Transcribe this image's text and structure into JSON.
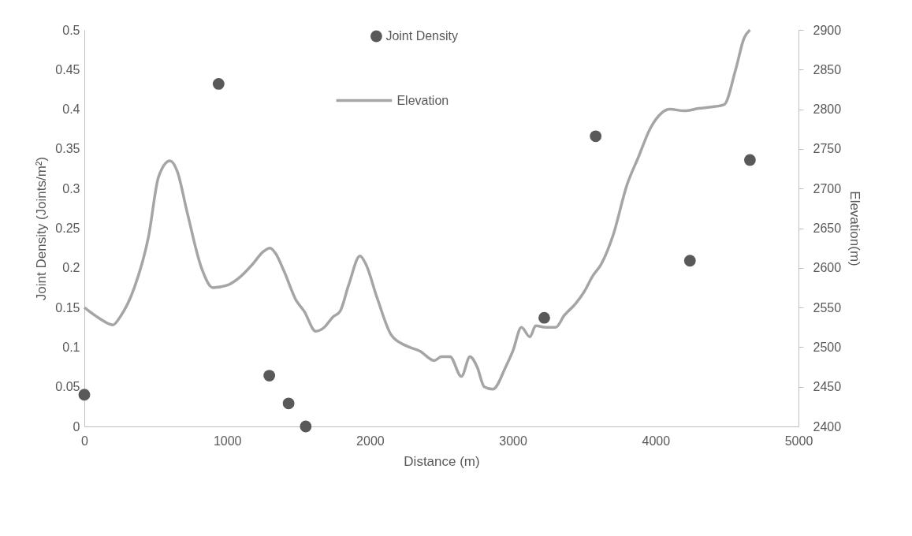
{
  "chart_data": {
    "type": "scatter",
    "xlabel": "Distance (m)",
    "ylabel": "Joint Density (Joints/m²)",
    "y2label": "Elevation(m)",
    "xlim": [
      0,
      5000
    ],
    "xticks": [
      0,
      1000,
      2000,
      3000,
      4000,
      5000
    ],
    "ylim": [
      0,
      0.5
    ],
    "yticks": [
      0,
      0.05,
      0.1,
      0.15,
      0.2,
      0.25,
      0.3,
      0.35,
      0.4,
      0.45,
      0.5
    ],
    "y2lim": [
      2400,
      2900
    ],
    "y2ticks": [
      2400,
      2450,
      2500,
      2550,
      2600,
      2650,
      2700,
      2750,
      2800,
      2850,
      2900
    ],
    "grid": false,
    "legend": "top",
    "series": [
      {
        "name": "Joint Density",
        "marker": "circle",
        "color": "#595959",
        "x": [
          0,
          940,
          1295,
          1430,
          1550,
          3220,
          3580,
          4240,
          4660
        ],
        "values": [
          0.04,
          0.432,
          0.064,
          0.029,
          0,
          0.137,
          0.366,
          0.209,
          0.336
        ]
      },
      {
        "name": "Elevation",
        "type": "line",
        "axis": "y2",
        "color": "#a5a5a5",
        "x": [
          0,
          100,
          200,
          250,
          350,
          450,
          520,
          600,
          650,
          720,
          820,
          900,
          1000,
          1100,
          1180,
          1250,
          1300,
          1340,
          1400,
          1480,
          1540,
          1620,
          1680,
          1740,
          1790,
          1850,
          1930,
          1970,
          2050,
          2150,
          2250,
          2350,
          2450,
          2500,
          2560,
          2640,
          2700,
          2750,
          2800,
          2860,
          2950,
          3000,
          3060,
          3120,
          3160,
          3230,
          3300,
          3360,
          3440,
          3500,
          3560,
          3620,
          3700,
          3800,
          3880,
          3960,
          4040,
          4100,
          4200,
          4300,
          4400,
          4480,
          4560,
          4620,
          4660
        ],
        "values": [
          2550,
          2537,
          2528,
          2538,
          2575,
          2640,
          2715,
          2735,
          2722,
          2670,
          2600,
          2575,
          2578,
          2590,
          2605,
          2620,
          2625,
          2618,
          2595,
          2560,
          2545,
          2520,
          2525,
          2538,
          2545,
          2578,
          2615,
          2605,
          2562,
          2515,
          2502,
          2495,
          2483,
          2488,
          2488,
          2463,
          2488,
          2475,
          2450,
          2447,
          2475,
          2495,
          2525,
          2513,
          2527,
          2525,
          2525,
          2540,
          2555,
          2570,
          2590,
          2605,
          2640,
          2705,
          2740,
          2775,
          2795,
          2800,
          2798,
          2801,
          2803,
          2806,
          2850,
          2890,
          2900
        ]
      }
    ]
  }
}
